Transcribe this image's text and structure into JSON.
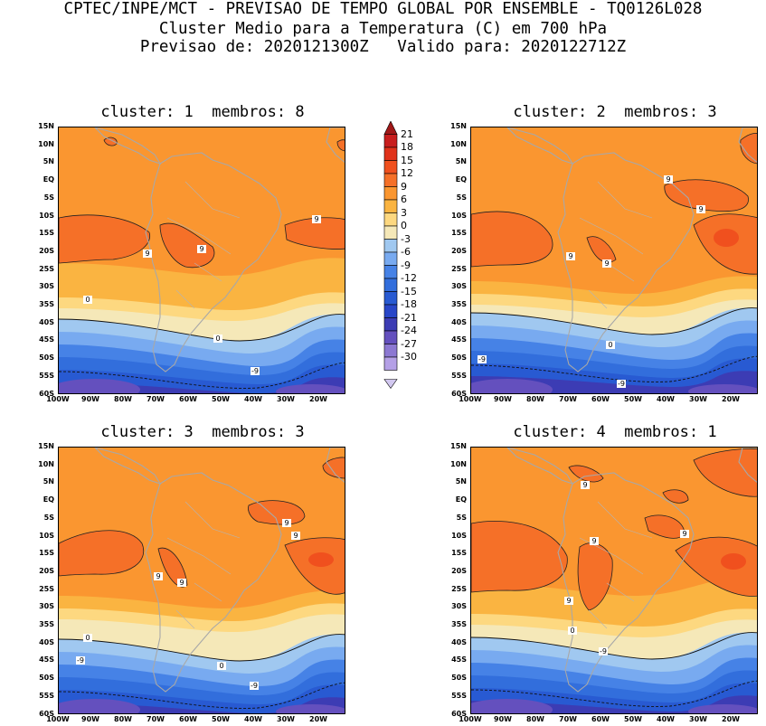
{
  "header": {
    "line1": "CPTEC/INPE/MCT - PREVISAO DE TEMPO GLOBAL POR ENSEMBLE - TQ0126L028",
    "line2": "Cluster Medio para a Temperatura (C) em 700 hPa",
    "line3": "Previsao de: 2020121300Z   Valido para: 2020122712Z"
  },
  "panels": [
    {
      "title": "cluster: 1  membros: 8",
      "labels": [
        "9",
        "9",
        "9",
        "0",
        "0",
        "-9"
      ]
    },
    {
      "title": "cluster: 2  membros: 3",
      "labels": [
        "9",
        "9",
        "9",
        "9",
        "0",
        "-9",
        "-9"
      ]
    },
    {
      "title": "cluster: 3  membros: 3",
      "labels": [
        "9",
        "9",
        "9",
        "9",
        "0",
        "0",
        "-9",
        "-9"
      ]
    },
    {
      "title": "cluster: 4  membros: 1",
      "labels": [
        "9",
        "9",
        "9",
        "9",
        "0",
        "-9"
      ]
    }
  ],
  "axes": {
    "y_ticks": [
      "15N",
      "10N",
      "5N",
      "EQ",
      "5S",
      "10S",
      "15S",
      "20S",
      "25S",
      "30S",
      "35S",
      "40S",
      "45S",
      "50S",
      "55S",
      "60S"
    ],
    "x_ticks": [
      "100W",
      "90W",
      "80W",
      "70W",
      "60W",
      "50W",
      "40W",
      "30W",
      "20W"
    ]
  },
  "colorbar": {
    "labels": [
      "21",
      "18",
      "15",
      "12",
      "9",
      "6",
      "3",
      "0",
      "-3",
      "-6",
      "-9",
      "-12",
      "-15",
      "-18",
      "-21",
      "-24",
      "-27",
      "-30"
    ],
    "colors": [
      "#a01818",
      "#c81e1e",
      "#e0321a",
      "#f0501e",
      "#f57028",
      "#fa9630",
      "#fab441",
      "#fdd880",
      "#f5e8b8",
      "#a0c8f0",
      "#78aaf0",
      "#4682e6",
      "#326edc",
      "#285ad2",
      "#2846c8",
      "#3c3cb4",
      "#6450be",
      "#8c78d2",
      "#b4a0e6",
      "#d2c8f0"
    ]
  },
  "map": {
    "ocean_orange": "#fa9630",
    "warm": "#f57028",
    "hot": "#f0501e",
    "land_outline": "#a8a8a8"
  }
}
